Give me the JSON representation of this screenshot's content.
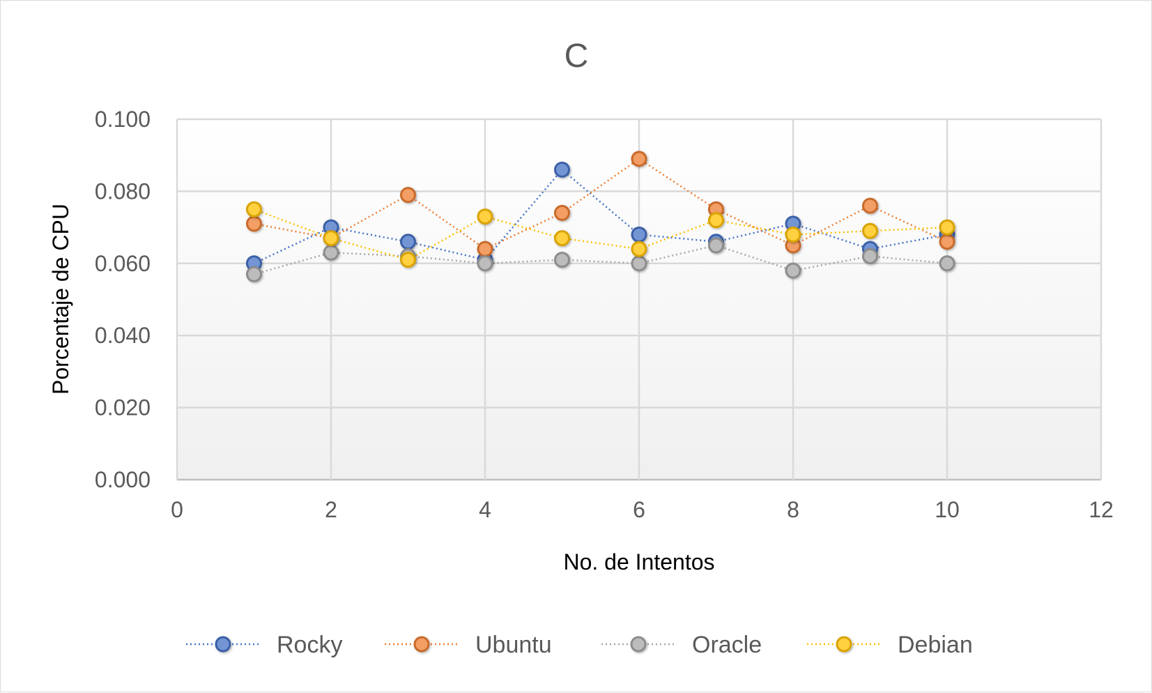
{
  "chart_data": {
    "type": "scatter",
    "title": "C",
    "xlabel": "No. de Intentos",
    "ylabel": "Porcentaje de CPU",
    "xlim": [
      0,
      12
    ],
    "ylim": [
      0,
      0.1
    ],
    "x_ticks": [
      "0",
      "2",
      "4",
      "6",
      "8",
      "10",
      "12"
    ],
    "y_ticks": [
      "0.000",
      "0.020",
      "0.040",
      "0.060",
      "0.080",
      "0.100"
    ],
    "grid": true,
    "legend_position": "bottom",
    "x": [
      1,
      2,
      3,
      4,
      5,
      6,
      7,
      8,
      9,
      10
    ],
    "series": [
      {
        "name": "Rocky",
        "color": "#4472c4",
        "values": [
          0.06,
          0.07,
          0.066,
          0.061,
          0.086,
          0.068,
          0.066,
          0.071,
          0.064,
          0.068
        ]
      },
      {
        "name": "Ubuntu",
        "color": "#ed7d31",
        "values": [
          0.071,
          0.067,
          0.079,
          0.064,
          0.074,
          0.089,
          0.075,
          0.065,
          0.076,
          0.066
        ]
      },
      {
        "name": "Oracle",
        "color": "#a5a5a5",
        "values": [
          0.057,
          0.063,
          0.062,
          0.06,
          0.061,
          0.06,
          0.065,
          0.058,
          0.062,
          0.06
        ]
      },
      {
        "name": "Debian",
        "color": "#ffc000",
        "values": [
          0.075,
          0.067,
          0.061,
          0.073,
          0.067,
          0.064,
          0.072,
          0.068,
          0.069,
          0.07
        ]
      }
    ]
  }
}
